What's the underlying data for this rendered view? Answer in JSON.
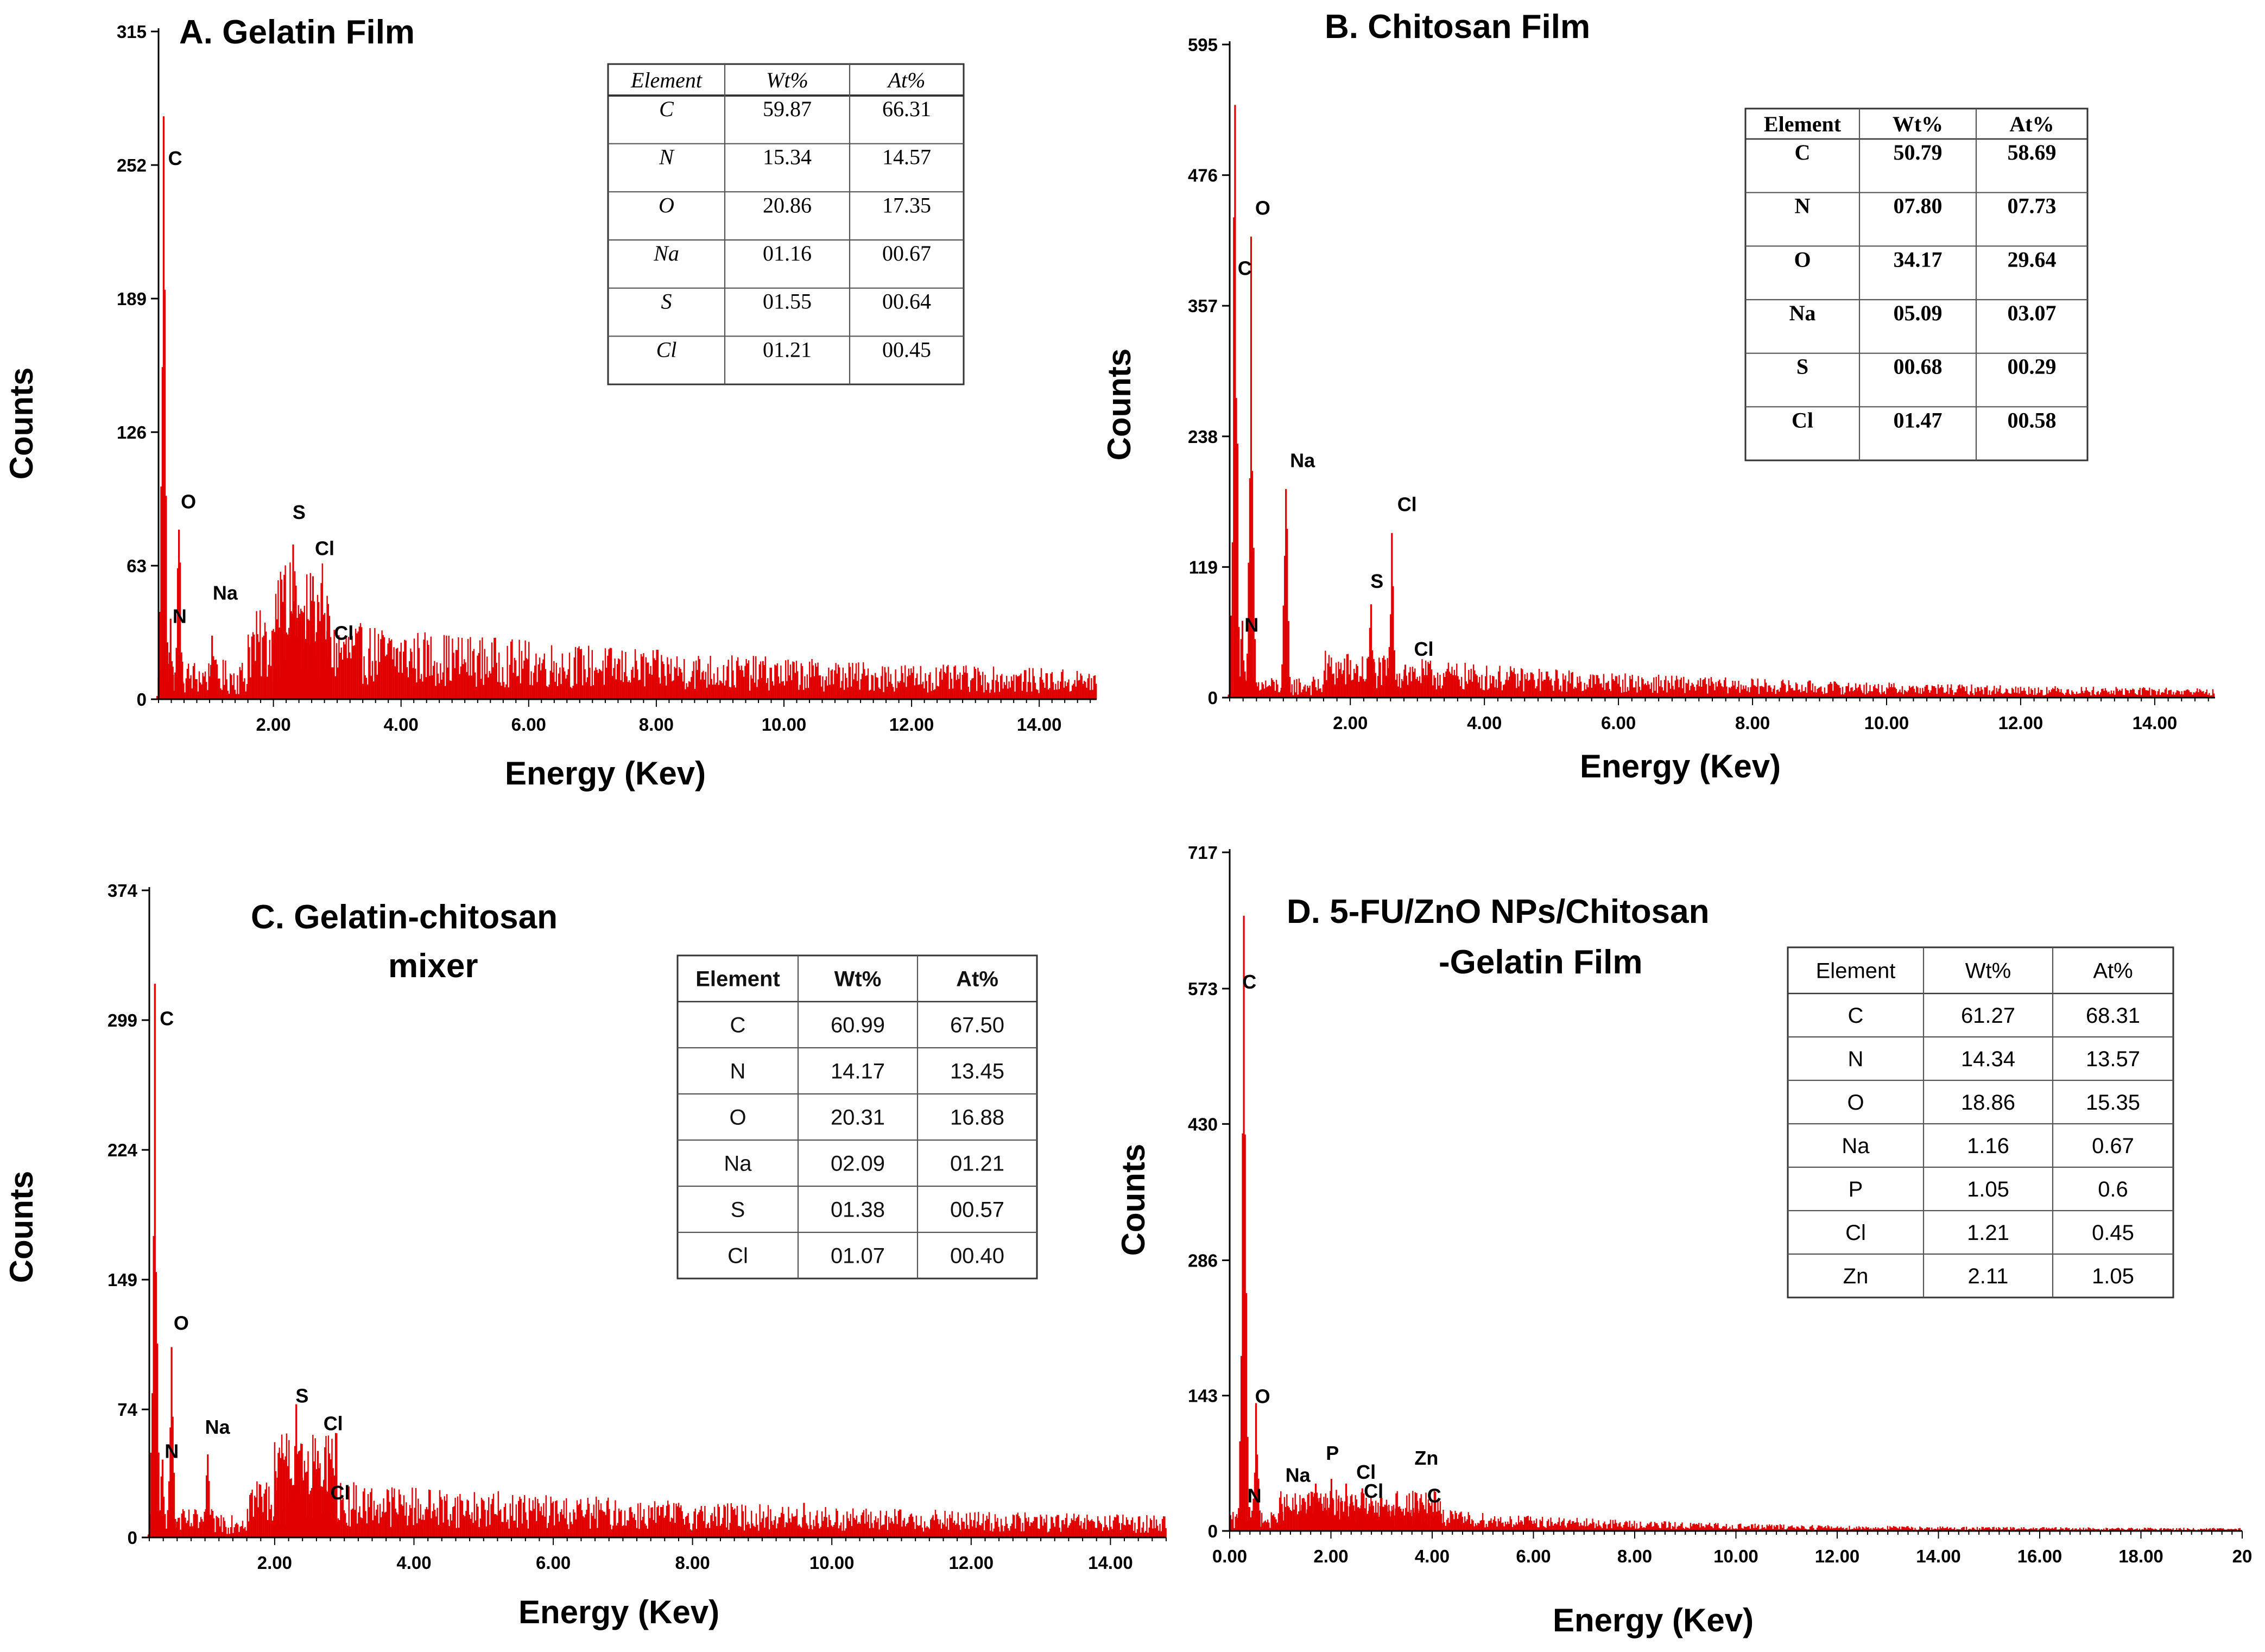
{
  "colors": {
    "spectrum": "#e00000",
    "axis": "#000000",
    "background": "#ffffff"
  },
  "chart_data": [
    {
      "id": "A",
      "type": "bar",
      "title": "A.  Gelatin  Film",
      "xlabel": "Energy (Kev)",
      "ylabel": "Counts",
      "xlim": [
        0.2,
        14.9
      ],
      "ylim": [
        0,
        315
      ],
      "yticks": [
        "0",
        "63",
        "126",
        "189",
        "252",
        "315"
      ],
      "xticks": [
        "2.00",
        "4.00",
        "6.00",
        "8.00",
        "10.00",
        "12.00",
        "14.00"
      ],
      "peaks": [
        {
          "label": "C",
          "x": 0.28,
          "y": 275
        },
        {
          "label": "N",
          "x": 0.39,
          "y": 38
        },
        {
          "label": "O",
          "x": 0.52,
          "y": 80
        },
        {
          "label": "Na",
          "x": 1.04,
          "y": 30
        },
        {
          "label": "S",
          "x": 2.31,
          "y": 73
        },
        {
          "label": "Cl",
          "x": 2.62,
          "y": 58
        },
        {
          "label": "Cl",
          "x": 2.82,
          "y": 12
        }
      ],
      "peak_labels": [
        {
          "text": "C",
          "x": 0.35,
          "y": 252
        },
        {
          "text": "O",
          "x": 0.55,
          "y": 90
        },
        {
          "text": "N",
          "x": 0.42,
          "y": 36
        },
        {
          "text": "Na",
          "x": 1.05,
          "y": 47
        },
        {
          "text": "S",
          "x": 2.3,
          "y": 85
        },
        {
          "text": "Cl",
          "x": 2.65,
          "y": 68
        },
        {
          "text": "Cl",
          "x": 2.95,
          "y": 28
        }
      ],
      "extra_peaks": [
        {
          "x": 9.67,
          "y": 18
        }
      ],
      "noise": {
        "start": 1.6,
        "end": 14.9,
        "level0": 28,
        "decay": 0.12,
        "floor": 5
      },
      "table": {
        "style": "serif",
        "headers": [
          "Element",
          "Wt%",
          "At%"
        ],
        "rows": [
          [
            "C",
            "59.87",
            "66.31"
          ],
          [
            "N",
            "15.34",
            "14.57"
          ],
          [
            "O",
            "20.86",
            "17.35"
          ],
          [
            "Na",
            "01.16",
            "00.67"
          ],
          [
            "S",
            "01.55",
            "00.64"
          ],
          [
            "Cl",
            "01.21",
            "00.45"
          ]
        ]
      }
    },
    {
      "id": "B",
      "type": "bar",
      "title": "B.   Chitosan Film",
      "xlabel": "Energy (Kev)",
      "ylabel": "Counts",
      "xlim": [
        0.2,
        14.9
      ],
      "ylim": [
        0,
        595
      ],
      "yticks": [
        "0",
        "119",
        "238",
        "357",
        "476",
        "595"
      ],
      "xticks": [
        "2.00",
        "4.00",
        "6.00",
        "8.00",
        "10.00",
        "12.00",
        "14.00"
      ],
      "peaks": [
        {
          "label": "C",
          "x": 0.28,
          "y": 540
        },
        {
          "label": "N",
          "x": 0.39,
          "y": 70
        },
        {
          "label": "O",
          "x": 0.52,
          "y": 420
        },
        {
          "label": "Na",
          "x": 1.04,
          "y": 190
        },
        {
          "label": "S",
          "x": 2.31,
          "y": 85
        },
        {
          "label": "Cl",
          "x": 2.62,
          "y": 150
        },
        {
          "label": "Cl",
          "x": 2.82,
          "y": 30
        }
      ],
      "peak_labels": [
        {
          "text": "C",
          "x": 0.32,
          "y": 385
        },
        {
          "text": "O",
          "x": 0.58,
          "y": 440
        },
        {
          "text": "Na",
          "x": 1.1,
          "y": 210
        },
        {
          "text": "Cl",
          "x": 2.7,
          "y": 170
        },
        {
          "text": "S",
          "x": 2.3,
          "y": 100
        },
        {
          "text": "N",
          "x": 0.42,
          "y": 60
        },
        {
          "text": "Cl",
          "x": 2.95,
          "y": 38
        }
      ],
      "extra_peaks": [
        {
          "x": 9.6,
          "y": 12
        }
      ],
      "noise": {
        "start": 1.6,
        "end": 14.9,
        "level0": 30,
        "decay": 0.18,
        "floor": 4
      },
      "table": {
        "style": "serif-bold",
        "headers": [
          "Element",
          "Wt%",
          "At%"
        ],
        "rows": [
          [
            "C",
            "50.79",
            "58.69"
          ],
          [
            "N",
            "07.80",
            "07.73"
          ],
          [
            "O",
            "34.17",
            "29.64"
          ],
          [
            "Na",
            "05.09",
            "03.07"
          ],
          [
            "S",
            "00.68",
            "00.29"
          ],
          [
            "Cl",
            "01.47",
            "00.58"
          ]
        ]
      }
    },
    {
      "id": "C",
      "type": "bar",
      "title_lines": [
        "C.  Gelatin-chitosan",
        "mixer"
      ],
      "xlabel": "Energy (Kev)",
      "ylabel": "Counts",
      "xlim": [
        0.2,
        14.8
      ],
      "ylim": [
        0,
        374
      ],
      "yticks": [
        "0",
        "74",
        "149",
        "224",
        "299",
        "374"
      ],
      "xticks": [
        "2.00",
        "4.00",
        "6.00",
        "8.00",
        "10.00",
        "12.00",
        "14.00"
      ],
      "peaks": [
        {
          "label": "C",
          "x": 0.28,
          "y": 320
        },
        {
          "label": "N",
          "x": 0.39,
          "y": 45
        },
        {
          "label": "O",
          "x": 0.52,
          "y": 110
        },
        {
          "label": "Na",
          "x": 1.04,
          "y": 48
        },
        {
          "label": "S",
          "x": 2.31,
          "y": 77
        },
        {
          "label": "Cl",
          "x": 2.62,
          "y": 50
        },
        {
          "label": "Cl",
          "x": 2.82,
          "y": 18
        }
      ],
      "peak_labels": [
        {
          "text": "C",
          "x": 0.35,
          "y": 296
        },
        {
          "text": "O",
          "x": 0.55,
          "y": 120
        },
        {
          "text": "N",
          "x": 0.42,
          "y": 46
        },
        {
          "text": "Na",
          "x": 1.0,
          "y": 60
        },
        {
          "text": "S",
          "x": 2.3,
          "y": 78
        },
        {
          "text": "Cl",
          "x": 2.7,
          "y": 62
        },
        {
          "text": "Cl",
          "x": 2.8,
          "y": 22
        }
      ],
      "extra_peaks": [
        {
          "x": 9.6,
          "y": 20
        },
        {
          "x": 11.45,
          "y": 12
        }
      ],
      "noise": {
        "start": 1.6,
        "end": 14.8,
        "level0": 24,
        "decay": 0.12,
        "floor": 5
      },
      "table": {
        "style": "sans",
        "headers": [
          "Element",
          "Wt%",
          "At%"
        ],
        "rows": [
          [
            "C",
            "60.99",
            "67.50"
          ],
          [
            "N",
            "14.17",
            "13.45"
          ],
          [
            "O",
            "20.31",
            "16.88"
          ],
          [
            "Na",
            "02.09",
            "01.21"
          ],
          [
            "S",
            "01.38",
            "00.57"
          ],
          [
            "Cl",
            "01.07",
            "00.40"
          ]
        ]
      }
    },
    {
      "id": "D",
      "type": "bar",
      "title_lines": [
        "D.   5-FU/ZnO NPs/Chitosan",
        "-Gelatin  Film"
      ],
      "xlabel": "Energy (Kev)",
      "ylabel": "Counts",
      "xlim": [
        0.0,
        20.0
      ],
      "ylim": [
        0,
        717
      ],
      "yticks": [
        "0",
        "143",
        "286",
        "430",
        "573",
        "717"
      ],
      "xticks": [
        "0.00",
        "2.00",
        "4.00",
        "6.00",
        "8.00",
        "10.00",
        "12.00",
        "14.00",
        "16.00",
        "18.00",
        "20"
      ],
      "peaks": [
        {
          "label": "C",
          "x": 0.28,
          "y": 650
        },
        {
          "label": "N",
          "x": 0.39,
          "y": 25
        },
        {
          "label": "O",
          "x": 0.52,
          "y": 135
        },
        {
          "label": "Na",
          "x": 1.04,
          "y": 20
        },
        {
          "label": "P",
          "x": 2.01,
          "y": 55
        },
        {
          "label": "Cl",
          "x": 2.62,
          "y": 45
        },
        {
          "label": "Zn",
          "x": 1.01,
          "y": 25
        },
        {
          "label": "C",
          "x": 3.69,
          "y": 40
        }
      ],
      "peak_labels": [
        {
          "text": "C",
          "x": 0.25,
          "y": 573
        },
        {
          "text": "O",
          "x": 0.5,
          "y": 135
        },
        {
          "text": "N",
          "x": 0.35,
          "y": 30
        },
        {
          "text": "Na",
          "x": 1.1,
          "y": 52
        },
        {
          "text": "P",
          "x": 1.9,
          "y": 75
        },
        {
          "text": "Cl",
          "x": 2.5,
          "y": 55
        },
        {
          "text": "Cl",
          "x": 2.65,
          "y": 35
        },
        {
          "text": "Zn",
          "x": 3.65,
          "y": 70
        },
        {
          "text": "C",
          "x": 3.9,
          "y": 30
        }
      ],
      "extra_peaks": [
        {
          "x": 1.7,
          "y": 50
        },
        {
          "x": 2.3,
          "y": 50
        },
        {
          "x": 3.0,
          "y": 35
        }
      ],
      "noise": {
        "start": 0.9,
        "end": 20.0,
        "level0": 32,
        "decay": 0.22,
        "floor": 2
      },
      "table": {
        "style": "calibri",
        "headers": [
          "Element",
          "Wt%",
          "At%"
        ],
        "rows": [
          [
            "C",
            "61.27",
            "68.31"
          ],
          [
            "N",
            "14.34",
            "13.57"
          ],
          [
            "O",
            "18.86",
            "15.35"
          ],
          [
            "Na",
            "1.16",
            "0.67"
          ],
          [
            "P",
            "1.05",
            "0.6"
          ],
          [
            "Cl",
            "1.21",
            "0.45"
          ],
          [
            "Zn",
            "2.11",
            "1.05"
          ]
        ]
      }
    }
  ]
}
